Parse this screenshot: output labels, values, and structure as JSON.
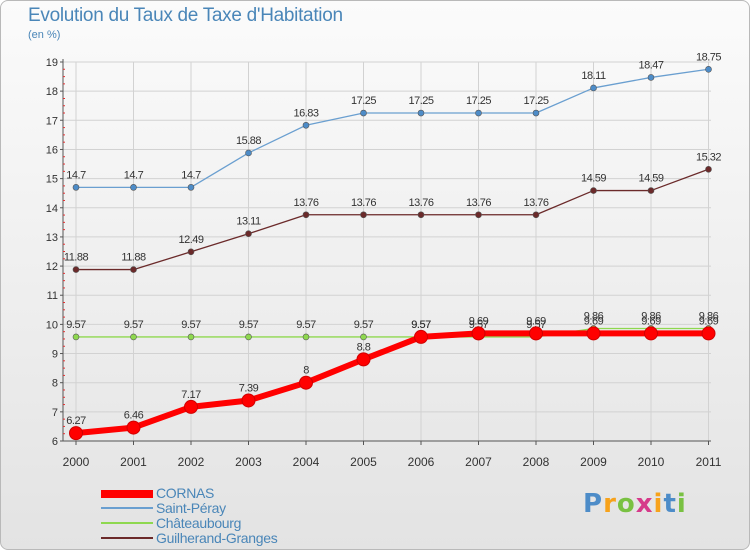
{
  "chart_data": {
    "type": "line",
    "title": "Evolution du Taux de Taxe d'Habitation",
    "subtitle": "(en %)",
    "x": [
      "2000",
      "2001",
      "2002",
      "2003",
      "2004",
      "2005",
      "2006",
      "2007",
      "2008",
      "2009",
      "2010",
      "2011"
    ],
    "ylim": [
      6,
      19
    ],
    "yticks": [
      "6",
      "7",
      "8",
      "9",
      "10",
      "11",
      "12",
      "13",
      "14",
      "15",
      "16",
      "17",
      "18",
      "19"
    ],
    "series": [
      {
        "name": "Saint-Péray",
        "color": "#6a9fd0",
        "dot": "#4d8cc8",
        "values": [
          14.7,
          14.7,
          14.7,
          15.88,
          16.83,
          17.25,
          17.25,
          17.25,
          17.25,
          18.11,
          18.47,
          18.75
        ],
        "labels": [
          "14.7",
          "14.7",
          "14.7",
          "15.88",
          "16.83",
          "17.25",
          "17.25",
          "17.25",
          "17.25",
          "18.11",
          "18.47",
          "18.75"
        ]
      },
      {
        "name": "Guilherand-Granges",
        "color": "#6b2a2a",
        "dot": "#6b2a2a",
        "values": [
          11.88,
          11.88,
          12.49,
          13.11,
          13.76,
          13.76,
          13.76,
          13.76,
          13.76,
          14.59,
          14.59,
          15.32
        ],
        "labels": [
          "11.88",
          "11.88",
          "12.49",
          "13.11",
          "13.76",
          "13.76",
          "13.76",
          "13.76",
          "13.76",
          "14.59",
          "14.59",
          "15.32"
        ]
      },
      {
        "name": "Châteaubourg",
        "color": "#8ed84f",
        "dot": "#8ed84f",
        "values": [
          9.57,
          9.57,
          9.57,
          9.57,
          9.57,
          9.57,
          9.57,
          9.57,
          9.57,
          9.86,
          9.86,
          9.86
        ],
        "labels": [
          "9.57",
          "9.57",
          "9.57",
          "9.57",
          "9.57",
          "9.57",
          "9.57",
          "9.57",
          "9.57",
          "9.86",
          "9.86",
          "9.86"
        ]
      },
      {
        "name": "CORNAS",
        "color": "#ff0000",
        "dot": "#ff0000",
        "values": [
          6.27,
          6.46,
          7.17,
          7.39,
          8,
          8.8,
          9.57,
          9.69,
          9.69,
          9.69,
          9.69,
          9.69
        ],
        "labels": [
          "6.27",
          "6.46",
          "7.17",
          "7.39",
          "8",
          "8.8",
          "9.57",
          "9.69",
          "9.69",
          "9.69",
          "9.69",
          "9.69"
        ]
      }
    ],
    "legend": [
      "CORNAS",
      "Saint-Péray",
      "Châteaubourg",
      "Guilherand-Granges"
    ],
    "legend_position": "bottom-left"
  },
  "logo": {
    "letters": [
      "P",
      "r",
      "o",
      "x",
      "i",
      "t",
      "i"
    ],
    "colors": [
      "#4d8cc8",
      "#f7a21b",
      "#79c142",
      "#d63a8a",
      "#f7a21b",
      "#4d8cc8",
      "#79c142"
    ]
  }
}
